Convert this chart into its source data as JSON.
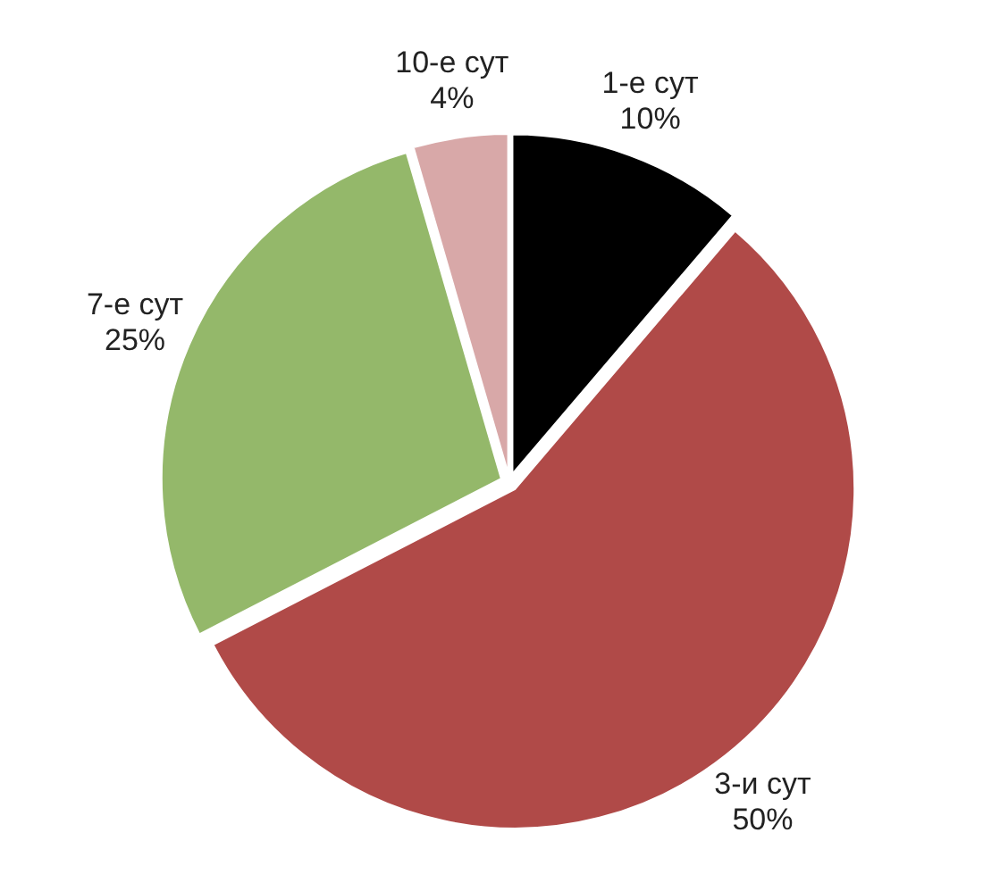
{
  "chart_data": {
    "type": "pie",
    "categories": [
      "1-е сут",
      "3-и сут",
      "7-е сут",
      "10-е сут"
    ],
    "values": [
      10,
      50,
      25,
      4
    ],
    "value_labels": [
      "10%",
      "50%",
      "25%",
      "4%"
    ],
    "colors": [
      "#000000",
      "#b04a48",
      "#94b86a",
      "#d8a8a8"
    ]
  }
}
